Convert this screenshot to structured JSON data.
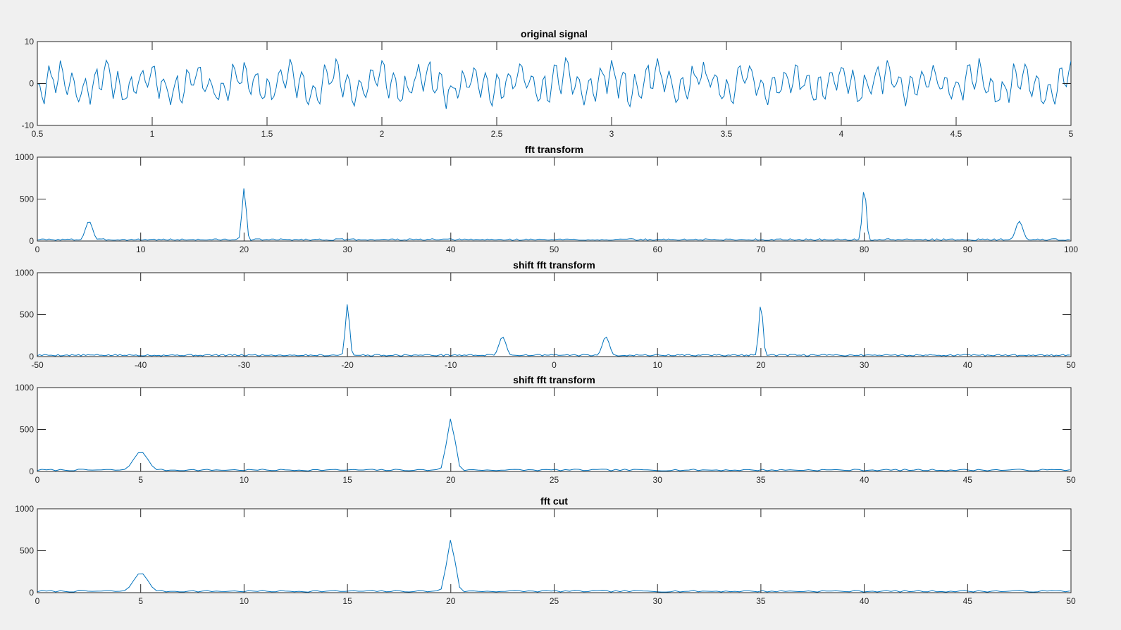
{
  "chart_data": [
    {
      "type": "line",
      "title": "original signal",
      "xlabel": "",
      "ylabel": "",
      "xlim": [
        0.5,
        5
      ],
      "ylim": [
        -10,
        10
      ],
      "xticks": [
        0.5,
        1,
        1.5,
        2,
        2.5,
        3,
        3.5,
        4,
        4.5,
        5
      ],
      "xtick_labels": [
        "0.5",
        "1",
        "1.5",
        "2",
        "2.5",
        "3",
        "3.5",
        "4",
        "4.5",
        "5"
      ],
      "yticks": [
        -10,
        0,
        10
      ],
      "ytick_labels": [
        "-10",
        "0",
        "10"
      ],
      "grid": false,
      "line_color": "#0072bd",
      "signal": {
        "x_start": 0.5,
        "x_end": 5,
        "components": [
          {
            "freq": 5,
            "amp": 2.0
          },
          {
            "freq": 20,
            "amp": 3.0
          }
        ],
        "noise_amp": 1.5,
        "seed": 11
      }
    },
    {
      "type": "line",
      "title": "fft transform",
      "xlabel": "",
      "ylabel": "",
      "xlim": [
        0,
        100
      ],
      "ylim": [
        0,
        1000
      ],
      "xticks": [
        0,
        10,
        20,
        30,
        40,
        50,
        60,
        70,
        80,
        90,
        100
      ],
      "xtick_labels": [
        "0",
        "10",
        "20",
        "30",
        "40",
        "50",
        "60",
        "70",
        "80",
        "90",
        "100"
      ],
      "yticks": [
        0,
        500,
        1000
      ],
      "ytick_labels": [
        "0",
        "500",
        "1000"
      ],
      "grid": false,
      "line_color": "#0072bd",
      "spectrum": {
        "x_start": 0,
        "x_end": 100,
        "step": 0.222,
        "noise_level": 20,
        "seed": 3,
        "peaks": [
          {
            "x": 5,
            "value": 235,
            "width": 0.35
          },
          {
            "x": 20,
            "value": 630,
            "width": 0.2
          },
          {
            "x": 80,
            "value": 630,
            "width": 0.2
          },
          {
            "x": 95,
            "value": 235,
            "width": 0.35
          }
        ]
      }
    },
    {
      "type": "line",
      "title": "shift fft transform",
      "xlabel": "",
      "ylabel": "",
      "xlim": [
        -50,
        50
      ],
      "ylim": [
        0,
        1000
      ],
      "xticks": [
        -50,
        -40,
        -30,
        -20,
        -10,
        0,
        10,
        20,
        30,
        40,
        50
      ],
      "xtick_labels": [
        "-50",
        "-40",
        "-30",
        "-20",
        "-10",
        "0",
        "10",
        "20",
        "30",
        "40",
        "50"
      ],
      "yticks": [
        0,
        500,
        1000
      ],
      "ytick_labels": [
        "0",
        "500",
        "1000"
      ],
      "grid": false,
      "line_color": "#0072bd",
      "spectrum": {
        "x_start": -50,
        "x_end": 50,
        "step": 0.222,
        "noise_level": 20,
        "seed": 5,
        "peaks": [
          {
            "x": -20,
            "value": 630,
            "width": 0.2
          },
          {
            "x": -5,
            "value": 235,
            "width": 0.35
          },
          {
            "x": 5,
            "value": 235,
            "width": 0.35
          },
          {
            "x": 20,
            "value": 630,
            "width": 0.2
          }
        ]
      }
    },
    {
      "type": "line",
      "title": "shift fft transform",
      "xlabel": "",
      "ylabel": "",
      "xlim": [
        0,
        50
      ],
      "ylim": [
        0,
        1000
      ],
      "xticks": [
        0,
        5,
        10,
        15,
        20,
        25,
        30,
        35,
        40,
        45,
        50
      ],
      "xtick_labels": [
        "0",
        "5",
        "10",
        "15",
        "20",
        "25",
        "30",
        "35",
        "40",
        "45",
        "50"
      ],
      "yticks": [
        0,
        500,
        1000
      ],
      "ytick_labels": [
        "0",
        "500",
        "1000"
      ],
      "grid": false,
      "line_color": "#0072bd",
      "spectrum": {
        "x_start": 0,
        "x_end": 50,
        "step": 0.222,
        "noise_level": 20,
        "seed": 7,
        "peaks": [
          {
            "x": 5,
            "value": 235,
            "width": 0.35
          },
          {
            "x": 20,
            "value": 630,
            "width": 0.2
          }
        ]
      }
    },
    {
      "type": "line",
      "title": "fft cut",
      "xlabel": "",
      "ylabel": "",
      "xlim": [
        0,
        50
      ],
      "ylim": [
        0,
        1000
      ],
      "xticks": [
        0,
        5,
        10,
        15,
        20,
        25,
        30,
        35,
        40,
        45,
        50
      ],
      "xtick_labels": [
        "0",
        "5",
        "10",
        "15",
        "20",
        "25",
        "30",
        "35",
        "40",
        "45",
        "50"
      ],
      "yticks": [
        0,
        500,
        1000
      ],
      "ytick_labels": [
        "0",
        "500",
        "1000"
      ],
      "grid": false,
      "line_color": "#0072bd",
      "spectrum": {
        "x_start": 0,
        "x_end": 50,
        "step": 0.222,
        "noise_level": 20,
        "seed": 7,
        "peaks": [
          {
            "x": 5,
            "value": 235,
            "width": 0.35
          },
          {
            "x": 20,
            "value": 630,
            "width": 0.2
          }
        ]
      }
    }
  ]
}
